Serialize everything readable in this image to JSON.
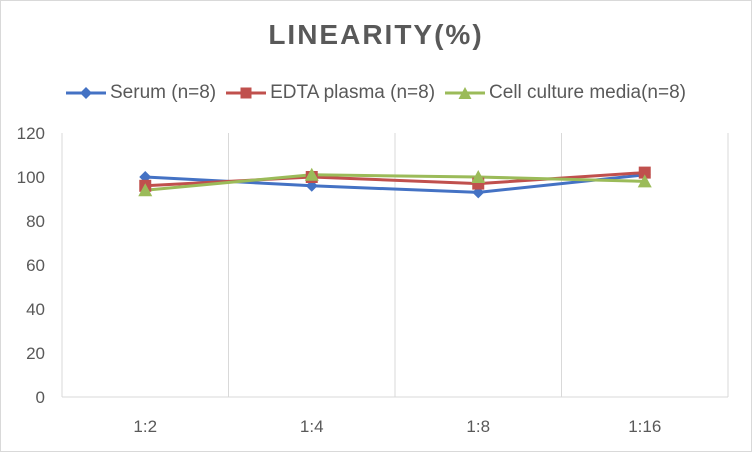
{
  "chart_data": {
    "type": "line",
    "title": "LINEARITY(%)",
    "categories": [
      "1:2",
      "1:4",
      "1:8",
      "1:16"
    ],
    "ylim": [
      0,
      120
    ],
    "yticks": [
      0,
      20,
      40,
      60,
      80,
      100,
      120
    ],
    "grid": "vertical",
    "legend_position": "top",
    "series": [
      {
        "name": "Serum (n=8)",
        "values": [
          100,
          96,
          93,
          101
        ],
        "color": "#4472c4",
        "marker": "diamond"
      },
      {
        "name": "EDTA plasma (n=8)",
        "values": [
          96,
          100,
          97,
          102
        ],
        "color": "#c0504d",
        "marker": "square"
      },
      {
        "name": "Cell culture media(n=8)",
        "values": [
          94,
          101,
          100,
          98
        ],
        "color": "#9bbb59",
        "marker": "triangle"
      }
    ]
  }
}
